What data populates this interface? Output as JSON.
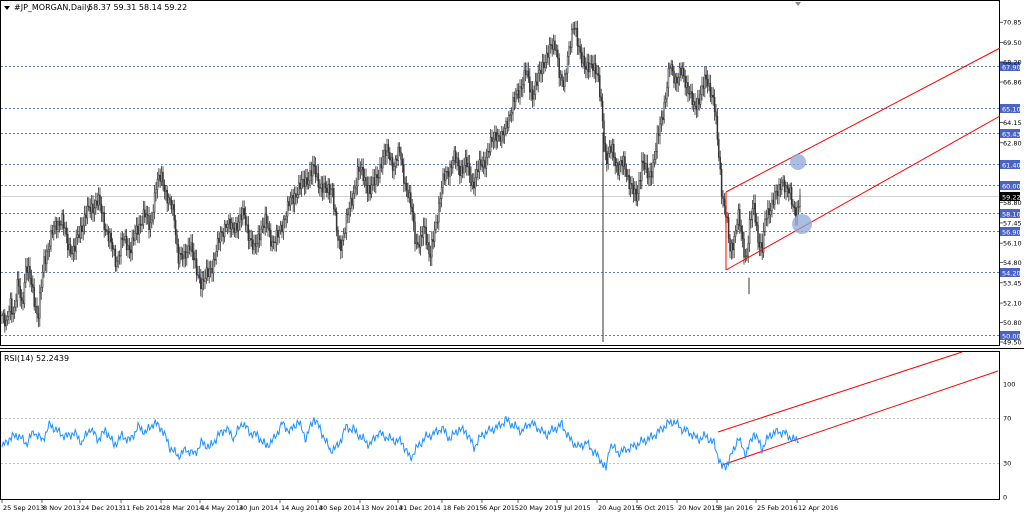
{
  "header": {
    "title": "#JP_MORGAN,Daily",
    "ohlc": "58.37 59.31 58.14 59.22"
  },
  "rsi_header": "RSI(14) 52.2439",
  "colors": {
    "candle": "#333333",
    "grid": "#2b4fb0",
    "level_label_bg": "#4a64c4",
    "channel": "#ff0000",
    "rsi_line": "#1e90ff",
    "marker": "#8fa8d8"
  },
  "chart_data": [
    {
      "type": "candlestick",
      "title": "#JP_MORGAN,Daily",
      "ylim": [
        49.5,
        71.4
      ],
      "y_ticks": [
        "70.85",
        "69.50",
        "68.20",
        "66.86",
        "64.15",
        "62.80",
        "58.80",
        "57.45",
        "56.10",
        "54.80",
        "53.45",
        "52.10",
        "50.80",
        "49.50"
      ],
      "horizontal_levels": [
        "67.90",
        "65.10",
        "63.43",
        "61.40",
        "60.00",
        "58.10",
        "56.90",
        "54.20",
        "50.00"
      ],
      "current_price": "59.22",
      "x_ticks": [
        "25 Sep 2013",
        "8 Nov 2013",
        "24 Dec 2013",
        "11 Feb 2014",
        "28 Mar 2014",
        "14 May 2014",
        "30 Jun 2014",
        "14 Aug 2014",
        "30 Sep 2014",
        "13 Nov 2014",
        "31 Dec 2014",
        "18 Feb 2015",
        "6 Apr 2015",
        "20 May 2015",
        "7 Jul 2015",
        "20 Aug 2015",
        "6 Oct 2015",
        "20 Nov 2015",
        "8 Jan 2016",
        "25 Feb 2016",
        "12 Apr 2016"
      ],
      "price_path": [
        {
          "x": 0,
          "close": 51.3
        },
        {
          "x": 4,
          "close": 50.4
        },
        {
          "x": 8,
          "close": 52.4
        },
        {
          "x": 12,
          "close": 51.2
        },
        {
          "x": 16,
          "close": 53.5
        },
        {
          "x": 20,
          "close": 52.0
        },
        {
          "x": 24,
          "close": 54.5
        },
        {
          "x": 30,
          "close": 53.3
        },
        {
          "x": 36,
          "close": 51.0
        },
        {
          "x": 42,
          "close": 55.0
        },
        {
          "x": 48,
          "close": 56.2
        },
        {
          "x": 54,
          "close": 57.5
        },
        {
          "x": 60,
          "close": 57.6
        },
        {
          "x": 66,
          "close": 56.0
        },
        {
          "x": 72,
          "close": 55.5
        },
        {
          "x": 78,
          "close": 57.0
        },
        {
          "x": 84,
          "close": 58.0
        },
        {
          "x": 90,
          "close": 58.5
        },
        {
          "x": 96,
          "close": 59.0
        },
        {
          "x": 102,
          "close": 57.5
        },
        {
          "x": 108,
          "close": 56.3
        },
        {
          "x": 114,
          "close": 54.8
        },
        {
          "x": 120,
          "close": 56.3
        },
        {
          "x": 128,
          "close": 55.8
        },
        {
          "x": 136,
          "close": 57.0
        },
        {
          "x": 142,
          "close": 58.2
        },
        {
          "x": 148,
          "close": 57.0
        },
        {
          "x": 154,
          "close": 60.0
        },
        {
          "x": 160,
          "close": 60.5
        },
        {
          "x": 166,
          "close": 59.0
        },
        {
          "x": 172,
          "close": 58.0
        },
        {
          "x": 176,
          "close": 55.3
        },
        {
          "x": 182,
          "close": 55.0
        },
        {
          "x": 188,
          "close": 56.3
        },
        {
          "x": 194,
          "close": 54.2
        },
        {
          "x": 200,
          "close": 53.5
        },
        {
          "x": 206,
          "close": 54.0
        },
        {
          "x": 212,
          "close": 55.0
        },
        {
          "x": 218,
          "close": 56.5
        },
        {
          "x": 224,
          "close": 57.5
        },
        {
          "x": 230,
          "close": 57.0
        },
        {
          "x": 236,
          "close": 57.5
        },
        {
          "x": 242,
          "close": 58.0
        },
        {
          "x": 248,
          "close": 56.4
        },
        {
          "x": 252,
          "close": 55.5
        },
        {
          "x": 258,
          "close": 57.0
        },
        {
          "x": 264,
          "close": 57.5
        },
        {
          "x": 270,
          "close": 56.2
        },
        {
          "x": 276,
          "close": 56.5
        },
        {
          "x": 282,
          "close": 57.8
        },
        {
          "x": 288,
          "close": 58.8
        },
        {
          "x": 294,
          "close": 59.5
        },
        {
          "x": 300,
          "close": 60.0
        },
        {
          "x": 306,
          "close": 60.5
        },
        {
          "x": 312,
          "close": 61.0
        },
        {
          "x": 318,
          "close": 60.0
        },
        {
          "x": 324,
          "close": 59.5
        },
        {
          "x": 330,
          "close": 60.0
        },
        {
          "x": 335,
          "close": 56.5
        },
        {
          "x": 338,
          "close": 55.8
        },
        {
          "x": 344,
          "close": 57.5
        },
        {
          "x": 350,
          "close": 59.0
        },
        {
          "x": 356,
          "close": 61.0
        },
        {
          "x": 362,
          "close": 60.5
        },
        {
          "x": 368,
          "close": 59.5
        },
        {
          "x": 374,
          "close": 60.5
        },
        {
          "x": 380,
          "close": 61.5
        },
        {
          "x": 386,
          "close": 62.5
        },
        {
          "x": 392,
          "close": 61.0
        },
        {
          "x": 398,
          "close": 62.5
        },
        {
          "x": 404,
          "close": 59.5
        },
        {
          "x": 410,
          "close": 58.5
        },
        {
          "x": 414,
          "close": 56.0
        },
        {
          "x": 418,
          "close": 55.8
        },
        {
          "x": 422,
          "close": 57.5
        },
        {
          "x": 428,
          "close": 55.0
        },
        {
          "x": 434,
          "close": 57.5
        },
        {
          "x": 440,
          "close": 60.0
        },
        {
          "x": 446,
          "close": 61.0
        },
        {
          "x": 452,
          "close": 61.8
        },
        {
          "x": 458,
          "close": 61.0
        },
        {
          "x": 464,
          "close": 61.5
        },
        {
          "x": 470,
          "close": 60.0
        },
        {
          "x": 476,
          "close": 61.0
        },
        {
          "x": 482,
          "close": 61.5
        },
        {
          "x": 488,
          "close": 62.5
        },
        {
          "x": 494,
          "close": 63.5
        },
        {
          "x": 500,
          "close": 63.0
        },
        {
          "x": 506,
          "close": 64.5
        },
        {
          "x": 512,
          "close": 65.5
        },
        {
          "x": 518,
          "close": 66.5
        },
        {
          "x": 524,
          "close": 67.5
        },
        {
          "x": 530,
          "close": 66.0
        },
        {
          "x": 536,
          "close": 67.0
        },
        {
          "x": 542,
          "close": 68.3
        },
        {
          "x": 548,
          "close": 69.0
        },
        {
          "x": 554,
          "close": 69.5
        },
        {
          "x": 558,
          "close": 67.0
        },
        {
          "x": 562,
          "close": 66.5
        },
        {
          "x": 566,
          "close": 69.0
        },
        {
          "x": 572,
          "close": 70.5
        },
        {
          "x": 578,
          "close": 69.0
        },
        {
          "x": 584,
          "close": 67.5
        },
        {
          "x": 590,
          "close": 68.3
        },
        {
          "x": 596,
          "close": 67.0
        },
        {
          "x": 600,
          "close": 65.0
        },
        {
          "x": 604,
          "close": 61.5
        },
        {
          "x": 610,
          "close": 62.5
        },
        {
          "x": 616,
          "close": 61.0
        },
        {
          "x": 622,
          "close": 61.5
        },
        {
          "x": 628,
          "close": 60.0
        },
        {
          "x": 634,
          "close": 59.0
        },
        {
          "x": 640,
          "close": 61.5
        },
        {
          "x": 646,
          "close": 60.5
        },
        {
          "x": 652,
          "close": 61.5
        },
        {
          "x": 658,
          "close": 64.0
        },
        {
          "x": 664,
          "close": 66.0
        },
        {
          "x": 668,
          "close": 68.0
        },
        {
          "x": 674,
          "close": 67.0
        },
        {
          "x": 680,
          "close": 67.5
        },
        {
          "x": 686,
          "close": 66.5
        },
        {
          "x": 692,
          "close": 65.0
        },
        {
          "x": 698,
          "close": 66.0
        },
        {
          "x": 704,
          "close": 67.0
        },
        {
          "x": 708,
          "close": 66.5
        },
        {
          "x": 712,
          "close": 65.5
        },
        {
          "x": 716,
          "close": 62.5
        },
        {
          "x": 720,
          "close": 59.5
        },
        {
          "x": 724,
          "close": 58.0
        },
        {
          "x": 728,
          "close": 55.5
        },
        {
          "x": 732,
          "close": 56.5
        },
        {
          "x": 736,
          "close": 58.0
        },
        {
          "x": 740,
          "close": 56.3
        },
        {
          "x": 744,
          "close": 55.0
        },
        {
          "x": 748,
          "close": 57.5
        },
        {
          "x": 752,
          "close": 58.5
        },
        {
          "x": 756,
          "close": 56.5
        },
        {
          "x": 760,
          "close": 55.5
        },
        {
          "x": 764,
          "close": 58.0
        },
        {
          "x": 768,
          "close": 58.5
        },
        {
          "x": 772,
          "close": 59.0
        },
        {
          "x": 776,
          "close": 59.5
        },
        {
          "x": 780,
          "close": 60.5
        },
        {
          "x": 784,
          "close": 59.5
        },
        {
          "x": 788,
          "close": 59.5
        },
        {
          "x": 792,
          "close": 58.5
        },
        {
          "x": 796,
          "close": 58.0
        },
        {
          "x": 798,
          "close": 59.22
        }
      ],
      "spikes": [
        {
          "x": 601,
          "high": 63.5,
          "low": 49.5
        },
        {
          "x": 747,
          "high": 53.8,
          "low": 52.7
        }
      ]
    },
    {
      "type": "line",
      "title": "RSI(14) 52.2439",
      "ylim": [
        0,
        100
      ],
      "y_ticks": [
        "100",
        "70",
        "30",
        "0"
      ],
      "levels": [
        70,
        30
      ],
      "x": [
        0,
        8,
        16,
        24,
        32,
        40,
        48,
        56,
        64,
        72,
        80,
        88,
        96,
        104,
        112,
        120,
        128,
        136,
        144,
        152,
        160,
        168,
        176,
        184,
        192,
        200,
        208,
        216,
        224,
        232,
        240,
        248,
        256,
        264,
        272,
        280,
        288,
        296,
        304,
        312,
        320,
        328,
        336,
        344,
        352,
        360,
        368,
        376,
        384,
        392,
        400,
        408,
        416,
        424,
        432,
        440,
        448,
        456,
        464,
        472,
        480,
        488,
        496,
        504,
        512,
        520,
        528,
        536,
        544,
        552,
        560,
        568,
        576,
        584,
        592,
        600,
        604,
        608,
        616,
        624,
        632,
        640,
        648,
        656,
        664,
        672,
        680,
        688,
        696,
        704,
        712,
        720,
        724,
        728,
        736,
        744,
        752,
        760,
        768,
        776,
        784,
        792,
        798
      ],
      "values": [
        44,
        52,
        55,
        47,
        58,
        50,
        64,
        58,
        53,
        57,
        48,
        61,
        51,
        59,
        46,
        54,
        50,
        62,
        57,
        66,
        60,
        44,
        36,
        42,
        38,
        48,
        44,
        54,
        61,
        52,
        66,
        57,
        54,
        45,
        51,
        65,
        58,
        67,
        52,
        70,
        57,
        41,
        45,
        62,
        59,
        52,
        46,
        57,
        53,
        50,
        49,
        34,
        45,
        53,
        56,
        61,
        51,
        60,
        58,
        44,
        55,
        59,
        62,
        68,
        63,
        58,
        66,
        61,
        55,
        60,
        64,
        51,
        44,
        48,
        40,
        31,
        24,
        47,
        39,
        42,
        45,
        49,
        52,
        57,
        64,
        67,
        60,
        57,
        51,
        54,
        47,
        26,
        28,
        34,
        52,
        38,
        57,
        43,
        55,
        58,
        56,
        50,
        52
      ]
    }
  ]
}
